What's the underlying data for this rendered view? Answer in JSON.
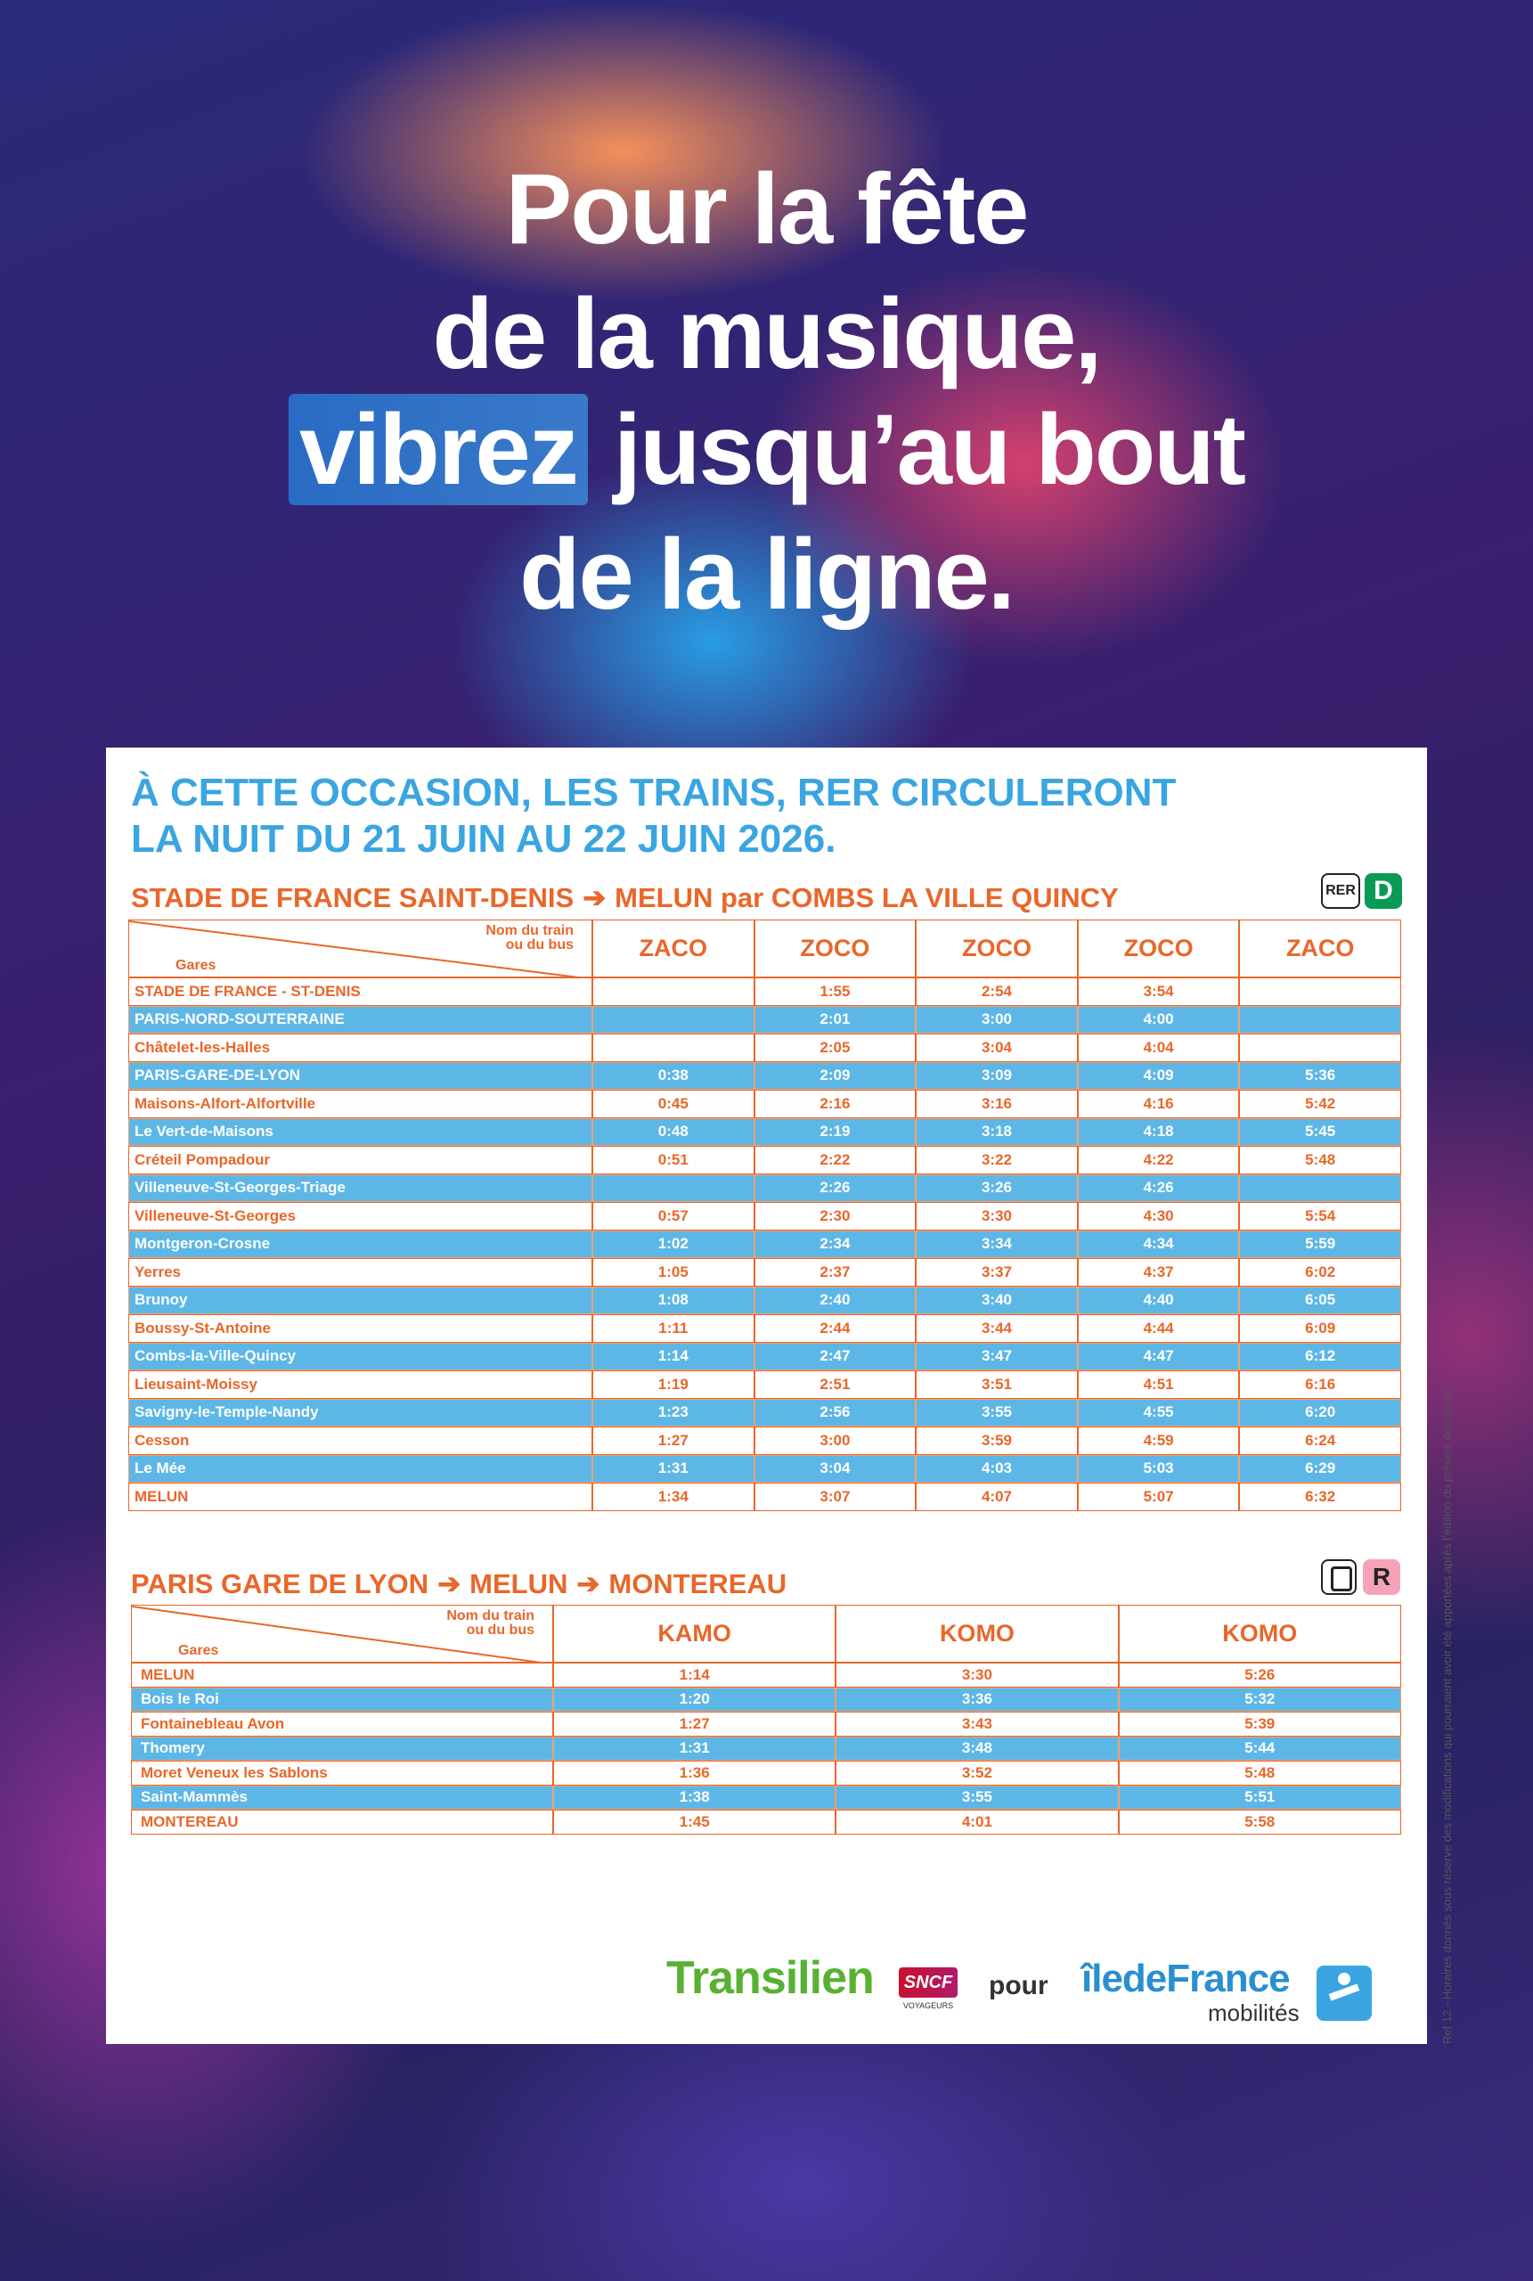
{
  "headline": {
    "line1": "Pour la fête",
    "line2": "de la musique,",
    "line3_highlight": "vibrez",
    "line3_rest": "jusqu’au bout",
    "line4": "de la ligne."
  },
  "intro": [
    "À CETTE OCCASION, LES TRAINS, RER CIRCULERONT",
    "LA NUIT DU 21 JUIN AU 22 JUIN 2026."
  ],
  "tables": [
    {
      "title": [
        "STADE DE FRANCE SAINT-DENIS",
        "MELUN par COMBS LA VILLE QUINCY"
      ],
      "badges": [
        "RER",
        "D"
      ],
      "corner_top": [
        "Nom du train",
        "ou du bus"
      ],
      "corner_bottom": "Gares",
      "columns": [
        "ZACO",
        "ZOCO",
        "ZOCO",
        "ZOCO",
        "ZACO"
      ],
      "rows": [
        [
          "STADE DE FRANCE - ST-DENIS",
          null,
          "1:55",
          "2:54",
          "3:54",
          null
        ],
        [
          "PARIS-NORD-SOUTERRAINE",
          null,
          "2:01",
          "3:00",
          "4:00",
          null
        ],
        [
          "Châtelet-les-Halles",
          null,
          "2:05",
          "3:04",
          "4:04",
          null
        ],
        [
          "PARIS-GARE-DE-LYON",
          "0:38",
          "2:09",
          "3:09",
          "4:09",
          "5:36"
        ],
        [
          "Maisons-Alfort-Alfortville",
          "0:45",
          "2:16",
          "3:16",
          "4:16",
          "5:42"
        ],
        [
          "Le Vert-de-Maisons",
          "0:48",
          "2:19",
          "3:18",
          "4:18",
          "5:45"
        ],
        [
          "Créteil Pompadour",
          "0:51",
          "2:22",
          "3:22",
          "4:22",
          "5:48"
        ],
        [
          "Villeneuve-St-Georges-Triage",
          null,
          "2:26",
          "3:26",
          "4:26",
          null
        ],
        [
          "Villeneuve-St-Georges",
          "0:57",
          "2:30",
          "3:30",
          "4:30",
          "5:54"
        ],
        [
          "Montgeron-Crosne",
          "1:02",
          "2:34",
          "3:34",
          "4:34",
          "5:59"
        ],
        [
          "Yerres",
          "1:05",
          "2:37",
          "3:37",
          "4:37",
          "6:02"
        ],
        [
          "Brunoy",
          "1:08",
          "2:40",
          "3:40",
          "4:40",
          "6:05"
        ],
        [
          "Boussy-St-Antoine",
          "1:11",
          "2:44",
          "3:44",
          "4:44",
          "6:09"
        ],
        [
          "Combs-la-Ville-Quincy",
          "1:14",
          "2:47",
          "3:47",
          "4:47",
          "6:12"
        ],
        [
          "Lieusaint-Moissy",
          "1:19",
          "2:51",
          "3:51",
          "4:51",
          "6:16"
        ],
        [
          "Savigny-le-Temple-Nandy",
          "1:23",
          "2:56",
          "3:55",
          "4:55",
          "6:20"
        ],
        [
          "Cesson",
          "1:27",
          "3:00",
          "3:59",
          "4:59",
          "6:24"
        ],
        [
          "Le Mée",
          "1:31",
          "3:04",
          "4:03",
          "5:03",
          "6:29"
        ],
        [
          "MELUN",
          "1:34",
          "3:07",
          "4:07",
          "5:07",
          "6:32"
        ]
      ]
    },
    {
      "title": [
        "PARIS GARE DE LYON",
        "MELUN",
        "MONTEREAU"
      ],
      "badges": [
        "R"
      ],
      "corner_top": [
        "Nom du train",
        "ou du bus"
      ],
      "corner_bottom": "Gares",
      "columns": [
        "KAMO",
        "KOMO",
        "KOMO"
      ],
      "rows": [
        [
          "MELUN",
          "1:14",
          "3:30",
          "5:26"
        ],
        [
          "Bois le Roi",
          "1:20",
          "3:36",
          "5:32"
        ],
        [
          "Fontainebleau Avon",
          "1:27",
          "3:43",
          "5:39"
        ],
        [
          "Thomery",
          "1:31",
          "3:48",
          "5:44"
        ],
        [
          "Moret Veneux les Sablons",
          "1:36",
          "3:52",
          "5:48"
        ],
        [
          "Saint-Mammès",
          "1:38",
          "3:55",
          "5:51"
        ],
        [
          "MONTEREAU",
          "1:45",
          "4:01",
          "5:58"
        ]
      ]
    }
  ],
  "footer": {
    "transilien": "Transilien",
    "sncf": "SNCF",
    "voyageurs": "VOYAGEURS",
    "pour": "pour",
    "idf": "îledeFrance",
    "mobilites": "mobilités"
  },
  "side_note": "Ref 12 - Horaires donnés sous réserve des modifications qui pourraient avoir été apportées après l’édition du présent document"
}
